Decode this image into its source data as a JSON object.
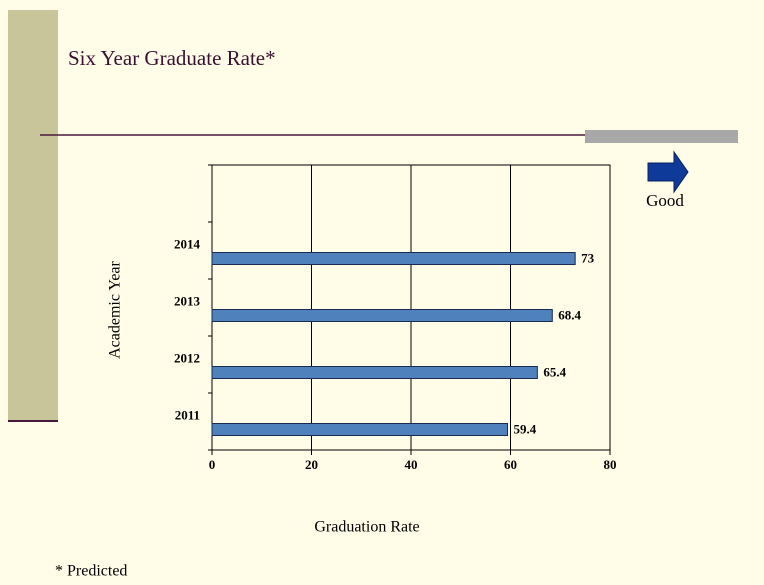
{
  "title": "Six Year Graduate Rate*",
  "legend_note": "Good",
  "footnote": "* Predicted",
  "chart_data": {
    "type": "hbar",
    "categories": [
      "2011",
      "2012",
      "2013",
      "2014",
      null
    ],
    "values": [
      59.4,
      65.4,
      68.4,
      73,
      null
    ],
    "color": "#4f81bd",
    "xlabel": "Graduation Rate",
    "ylabel": "Academic Year",
    "xlim": [
      0,
      80
    ],
    "xticks": [
      0,
      20,
      40,
      60,
      80
    ],
    "grid": true
  }
}
